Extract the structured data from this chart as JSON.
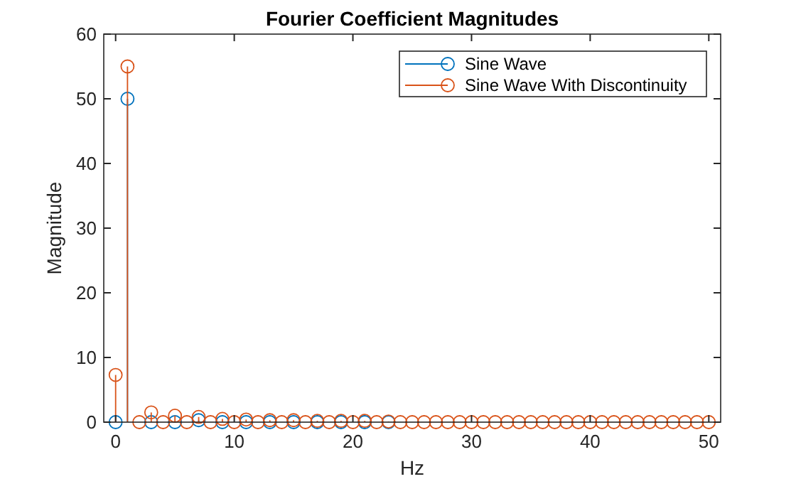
{
  "chart_data": {
    "type": "lollipop",
    "title": "Fourier Coefficient Magnitudes",
    "xlabel": "Hz",
    "ylabel": "Magnitude",
    "xlim": [
      -1,
      51
    ],
    "xticks": [
      0,
      10,
      20,
      30,
      40,
      50
    ],
    "ylim": [
      0,
      60
    ],
    "yticks": [
      0,
      10,
      20,
      30,
      40,
      50,
      60
    ],
    "grid": false,
    "legend": "top right",
    "marker": "circle",
    "series": [
      {
        "name": "Sine Wave",
        "color": "#0072bd",
        "x": [
          0,
          1,
          3,
          5,
          7,
          9,
          11,
          13,
          15,
          17,
          19,
          21,
          23
        ],
        "values": [
          0,
          50,
          0,
          0,
          0.3,
          0,
          0,
          0,
          0,
          0,
          0,
          0,
          0
        ]
      },
      {
        "name": "Sine Wave With Discontinuity",
        "color": "#d95319",
        "x": [
          0,
          1,
          2,
          3,
          4,
          5,
          6,
          7,
          8,
          9,
          10,
          11,
          12,
          13,
          14,
          15,
          16,
          17,
          18,
          19,
          20,
          21,
          22,
          23,
          24,
          25,
          26,
          27,
          28,
          29,
          30,
          31,
          32,
          33,
          34,
          35,
          36,
          37,
          38,
          39,
          40,
          41,
          42,
          43,
          44,
          45,
          46,
          47,
          48,
          49,
          50
        ],
        "values": [
          7.3,
          55,
          0,
          1.5,
          0,
          1,
          0,
          0.8,
          0,
          0.5,
          0,
          0.4,
          0,
          0.3,
          0,
          0.3,
          0,
          0.2,
          0,
          0.2,
          0,
          0.2,
          0,
          0.1,
          0,
          0,
          0,
          0,
          0,
          0,
          0,
          0,
          0,
          0,
          0,
          0,
          0,
          0,
          0,
          0,
          0,
          0,
          0,
          0,
          0,
          0,
          0,
          0,
          0,
          0,
          0
        ]
      }
    ]
  }
}
